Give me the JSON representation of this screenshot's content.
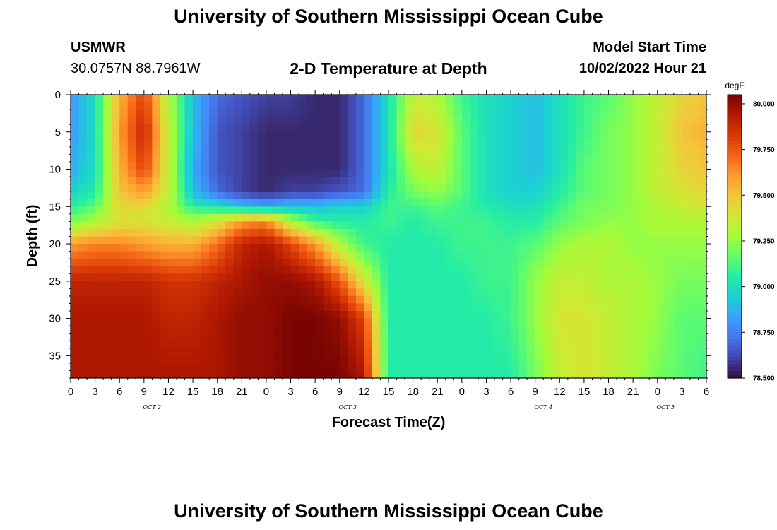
{
  "page": {
    "title": "University of Southern Mississippi Ocean Cube",
    "footer_title": "University of Southern Mississippi Ocean Cube",
    "station_id": "USMWR",
    "station_coords": "30.0757N  88.7961W",
    "model_start_label": "Model Start Time",
    "model_start_value": "10/02/2022 Hour 21"
  },
  "chart_data": {
    "type": "heatmap",
    "title": "2-D Temperature at Depth",
    "xlabel": "Forecast Time(Z)",
    "ylabel": "Depth (ft)",
    "x_tick_labels": [
      "0",
      "3",
      "6",
      "9",
      "12",
      "15",
      "18",
      "21",
      "0",
      "3",
      "6",
      "9",
      "12",
      "15",
      "18",
      "21",
      "0",
      "3",
      "6",
      "9",
      "12",
      "15",
      "18",
      "21",
      "0",
      "3",
      "6"
    ],
    "date_labels": [
      {
        "text": "OCT 2",
        "at_hour": 10
      },
      {
        "text": "OCT 3",
        "at_hour": 34
      },
      {
        "text": "OCT 4",
        "at_hour": 58
      },
      {
        "text": "OCT 5",
        "at_hour": 73
      }
    ],
    "xlim_hours": [
      0,
      78
    ],
    "y_ticks": [
      0,
      5,
      10,
      15,
      20,
      25,
      30,
      35
    ],
    "ylim": [
      0,
      38
    ],
    "y_inverted": true,
    "colorbar": {
      "unit": "degF",
      "range": [
        78.5,
        80.05
      ],
      "ticks": [
        "80.000",
        "79.750",
        "79.500",
        "79.250",
        "79.000",
        "78.750",
        "78.500"
      ],
      "colors": [
        "#30123b",
        "#4145ab",
        "#4675ed",
        "#39a2fc",
        "#1bcfd4",
        "#24eca6",
        "#61fc6c",
        "#a4fc3b",
        "#d1e834",
        "#f3c63a",
        "#fe9b2d",
        "#f36315",
        "#d93806",
        "#b11901",
        "#7a0403"
      ]
    },
    "temperature_control_points": [
      {
        "hour": 0,
        "depths": [
          0,
          5,
          10,
          13,
          15,
          17,
          20,
          25,
          30,
          38
        ],
        "values": [
          78.8,
          78.8,
          78.85,
          78.95,
          79.05,
          79.2,
          79.6,
          79.9,
          79.95,
          79.95
        ]
      },
      {
        "hour": 3,
        "depths": [
          0,
          5,
          10,
          13,
          15,
          17,
          20,
          25,
          30,
          38
        ],
        "values": [
          79.0,
          79.0,
          79.0,
          79.05,
          79.15,
          79.3,
          79.65,
          79.9,
          79.95,
          79.95
        ]
      },
      {
        "hour": 6,
        "depths": [
          0,
          5,
          10,
          13,
          15,
          17,
          20,
          25,
          30,
          38
        ],
        "values": [
          79.55,
          79.6,
          79.55,
          79.5,
          79.45,
          79.4,
          79.65,
          79.9,
          79.95,
          79.95
        ]
      },
      {
        "hour": 9,
        "depths": [
          0,
          5,
          10,
          13,
          15,
          17,
          20,
          25,
          30,
          38
        ],
        "values": [
          79.8,
          79.9,
          79.8,
          79.6,
          79.45,
          79.4,
          79.6,
          79.9,
          79.95,
          79.95
        ]
      },
      {
        "hour": 12,
        "depths": [
          0,
          5,
          10,
          13,
          15,
          17,
          20,
          25,
          30,
          38
        ],
        "values": [
          79.3,
          79.35,
          79.35,
          79.35,
          79.3,
          79.35,
          79.55,
          79.85,
          79.9,
          79.95
        ]
      },
      {
        "hour": 15,
        "depths": [
          0,
          5,
          10,
          13,
          15,
          17,
          20,
          25,
          30,
          38
        ],
        "values": [
          78.9,
          78.9,
          78.85,
          78.9,
          79.05,
          79.3,
          79.55,
          79.85,
          79.9,
          79.95
        ]
      },
      {
        "hour": 18,
        "depths": [
          0,
          5,
          10,
          13,
          15,
          17,
          20,
          25,
          30,
          38
        ],
        "values": [
          78.7,
          78.65,
          78.65,
          78.7,
          79.0,
          79.4,
          79.7,
          79.9,
          79.95,
          79.95
        ]
      },
      {
        "hour": 21,
        "depths": [
          0,
          5,
          10,
          13,
          15,
          17,
          20,
          25,
          30,
          38
        ],
        "values": [
          78.65,
          78.6,
          78.6,
          78.6,
          78.9,
          79.6,
          79.9,
          79.95,
          80.0,
          80.0
        ]
      },
      {
        "hour": 24,
        "depths": [
          0,
          5,
          10,
          13,
          15,
          17,
          20,
          25,
          30,
          38
        ],
        "values": [
          78.6,
          78.55,
          78.55,
          78.55,
          78.85,
          79.65,
          79.95,
          80.0,
          80.0,
          80.0
        ]
      },
      {
        "hour": 27,
        "depths": [
          0,
          5,
          10,
          13,
          15,
          17,
          20,
          25,
          30,
          38
        ],
        "values": [
          78.6,
          78.55,
          78.55,
          78.6,
          78.9,
          79.3,
          79.8,
          80.0,
          80.05,
          80.05
        ]
      },
      {
        "hour": 30,
        "depths": [
          0,
          5,
          10,
          13,
          15,
          17,
          20,
          25,
          30,
          38
        ],
        "values": [
          78.55,
          78.55,
          78.55,
          78.6,
          78.9,
          79.1,
          79.6,
          79.95,
          80.05,
          80.05
        ]
      },
      {
        "hour": 33,
        "depths": [
          0,
          5,
          10,
          13,
          15,
          17,
          20,
          25,
          30,
          38
        ],
        "values": [
          78.55,
          78.55,
          78.55,
          78.65,
          78.95,
          79.05,
          79.3,
          79.75,
          80.0,
          80.05
        ]
      },
      {
        "hour": 36,
        "depths": [
          0,
          5,
          10,
          13,
          15,
          17,
          20,
          25,
          30,
          38
        ],
        "values": [
          78.7,
          78.7,
          78.7,
          78.7,
          78.95,
          79.05,
          79.1,
          79.4,
          79.8,
          79.95
        ]
      },
      {
        "hour": 39,
        "depths": [
          0,
          5,
          10,
          13,
          15,
          17,
          20,
          25,
          30,
          38
        ],
        "values": [
          79.0,
          79.0,
          79.0,
          79.05,
          79.1,
          79.1,
          79.05,
          79.05,
          79.05,
          79.05
        ]
      },
      {
        "hour": 42,
        "depths": [
          0,
          5,
          10,
          13,
          15,
          17,
          20,
          25,
          30,
          38
        ],
        "values": [
          79.35,
          79.45,
          79.3,
          79.2,
          79.1,
          79.05,
          79.05,
          79.05,
          79.05,
          79.05
        ]
      },
      {
        "hour": 45,
        "depths": [
          0,
          5,
          10,
          13,
          15,
          17,
          20,
          25,
          30,
          38
        ],
        "values": [
          79.3,
          79.4,
          79.35,
          79.25,
          79.15,
          79.1,
          79.05,
          79.05,
          79.05,
          79.05
        ]
      },
      {
        "hour": 48,
        "depths": [
          0,
          5,
          10,
          13,
          15,
          17,
          20,
          25,
          30,
          38
        ],
        "values": [
          79.1,
          79.15,
          79.15,
          79.15,
          79.1,
          79.1,
          79.1,
          79.05,
          79.05,
          79.05
        ]
      },
      {
        "hour": 51,
        "depths": [
          0,
          5,
          10,
          13,
          15,
          17,
          20,
          25,
          30,
          38
        ],
        "values": [
          79.0,
          79.0,
          79.0,
          79.0,
          79.05,
          79.1,
          79.1,
          79.1,
          79.05,
          79.05
        ]
      },
      {
        "hour": 54,
        "depths": [
          0,
          5,
          10,
          13,
          15,
          17,
          20,
          25,
          30,
          38
        ],
        "values": [
          78.95,
          78.95,
          78.95,
          78.95,
          79.0,
          79.05,
          79.1,
          79.1,
          79.1,
          79.05
        ]
      },
      {
        "hour": 57,
        "depths": [
          0,
          5,
          10,
          13,
          15,
          17,
          20,
          25,
          30,
          38
        ],
        "values": [
          78.9,
          78.9,
          78.9,
          78.95,
          79.0,
          79.05,
          79.15,
          79.25,
          79.25,
          79.2
        ]
      },
      {
        "hour": 60,
        "depths": [
          0,
          5,
          10,
          13,
          15,
          17,
          20,
          25,
          30,
          38
        ],
        "values": [
          79.0,
          79.0,
          79.0,
          79.05,
          79.1,
          79.15,
          79.25,
          79.35,
          79.4,
          79.35
        ]
      },
      {
        "hour": 63,
        "depths": [
          0,
          5,
          10,
          13,
          15,
          17,
          20,
          25,
          30,
          38
        ],
        "values": [
          79.1,
          79.1,
          79.15,
          79.15,
          79.2,
          79.2,
          79.3,
          79.35,
          79.4,
          79.4
        ]
      },
      {
        "hour": 66,
        "depths": [
          0,
          5,
          10,
          13,
          15,
          17,
          20,
          25,
          30,
          38
        ],
        "values": [
          79.15,
          79.2,
          79.2,
          79.2,
          79.2,
          79.25,
          79.3,
          79.3,
          79.35,
          79.35
        ]
      },
      {
        "hour": 69,
        "depths": [
          0,
          5,
          10,
          13,
          15,
          17,
          20,
          25,
          30,
          38
        ],
        "values": [
          79.25,
          79.25,
          79.25,
          79.25,
          79.25,
          79.25,
          79.25,
          79.3,
          79.3,
          79.3
        ]
      },
      {
        "hour": 72,
        "depths": [
          0,
          5,
          10,
          13,
          15,
          17,
          20,
          25,
          30,
          38
        ],
        "values": [
          79.35,
          79.35,
          79.35,
          79.35,
          79.3,
          79.3,
          79.25,
          79.25,
          79.25,
          79.2
        ]
      },
      {
        "hour": 75,
        "depths": [
          0,
          5,
          10,
          13,
          15,
          17,
          20,
          25,
          30,
          38
        ],
        "values": [
          79.45,
          79.5,
          79.45,
          79.4,
          79.35,
          79.3,
          79.25,
          79.2,
          79.15,
          79.15
        ]
      },
      {
        "hour": 78,
        "depths": [
          0,
          5,
          10,
          13,
          15,
          17,
          20,
          25,
          30,
          38
        ],
        "values": [
          79.5,
          79.55,
          79.5,
          79.45,
          79.4,
          79.3,
          79.25,
          79.2,
          79.15,
          79.1
        ]
      }
    ]
  }
}
